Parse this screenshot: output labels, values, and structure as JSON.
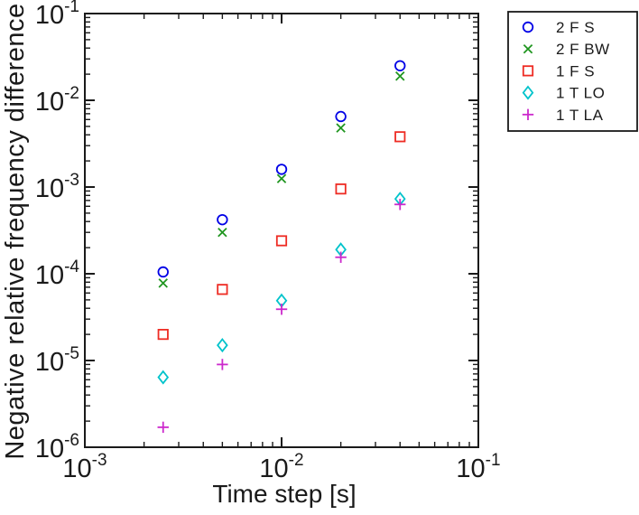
{
  "figure": {
    "background": "#ffffff",
    "axis_color": "#1a1a1a"
  },
  "chart_data": {
    "type": "scatter",
    "title": "",
    "xlabel": "Time step [s]",
    "ylabel": "Negative relative frequency difference",
    "xscale": "log",
    "yscale": "log",
    "xlim": [
      0.001,
      0.1
    ],
    "ylim": [
      1e-06,
      0.1
    ],
    "grid": false,
    "legend_position": "top-right-outside",
    "tick_base": "10",
    "x_tick_exponents": [
      -3,
      -2,
      -1
    ],
    "y_tick_exponents": [
      -1,
      -2,
      -3,
      -4,
      -5,
      -6
    ],
    "x": [
      0.0025,
      0.005,
      0.01,
      0.02,
      0.04
    ],
    "series": [
      {
        "name": "2 F S",
        "marker": "circle",
        "color": "#0000e6",
        "values": [
          0.000105,
          0.00042,
          0.0016,
          0.0065,
          0.025
        ]
      },
      {
        "name": "2 F BW",
        "marker": "x",
        "color": "#209620",
        "values": [
          7.8e-05,
          0.0003,
          0.00125,
          0.0048,
          0.019
        ]
      },
      {
        "name": "1 F S",
        "marker": "square",
        "color": "#ee2c24",
        "values": [
          2e-05,
          6.6e-05,
          0.00024,
          0.00095,
          0.0038
        ]
      },
      {
        "name": "1 T LO",
        "marker": "diamond",
        "color": "#00c3cb",
        "values": [
          6.4e-06,
          1.5e-05,
          4.9e-05,
          0.00019,
          0.00073
        ]
      },
      {
        "name": "1 T LA",
        "marker": "plus",
        "color": "#cc29cc",
        "values": [
          1.7e-06,
          9e-06,
          3.9e-05,
          0.000155,
          0.00063
        ]
      }
    ]
  }
}
